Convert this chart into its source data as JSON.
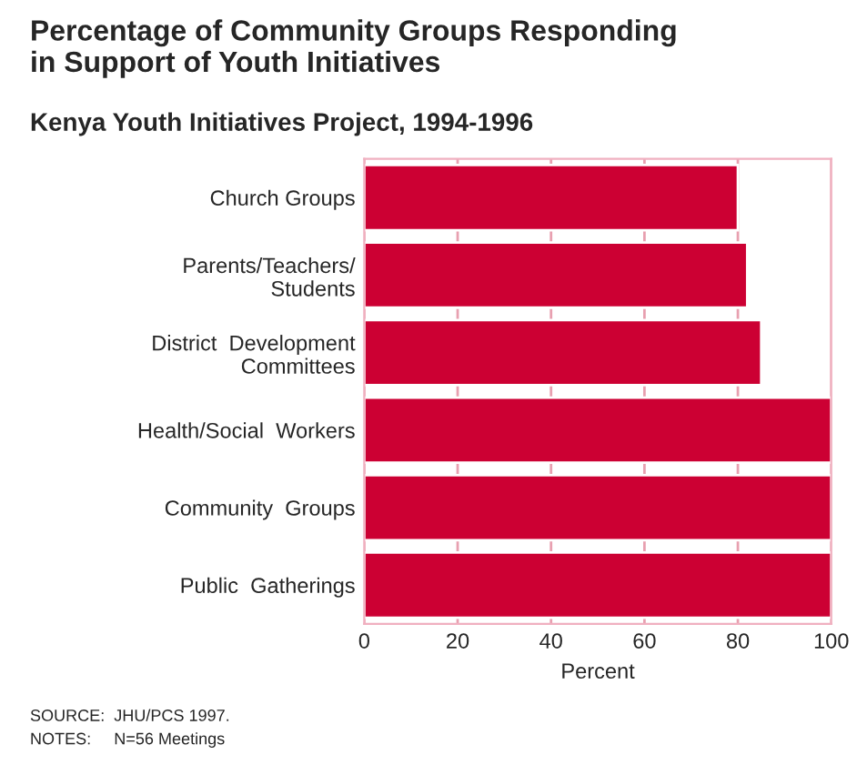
{
  "chart_data": {
    "type": "bar",
    "orientation": "horizontal",
    "title": "Percentage of Community Groups Responding\nin Support of Youth Initiatives",
    "subtitle": "Kenya Youth Initiatives Project, 1994-1996",
    "categories": [
      "Church Groups",
      "Parents/Teachers/\nStudents",
      "District  Development\nCommittees",
      "Health/Social  Workers",
      "Community  Groups",
      "Public  Gatherings"
    ],
    "values": [
      80,
      82,
      85,
      100,
      100,
      100
    ],
    "color": "#cc0033",
    "xlim": [
      0,
      100
    ],
    "xticks": [
      0,
      20,
      40,
      60,
      80,
      100
    ],
    "xlabel": "Percent",
    "grid": "x",
    "annotations": [
      "SOURCE:  JHU/PCS 1997.",
      "NOTES:     N=56 Meetings"
    ]
  }
}
